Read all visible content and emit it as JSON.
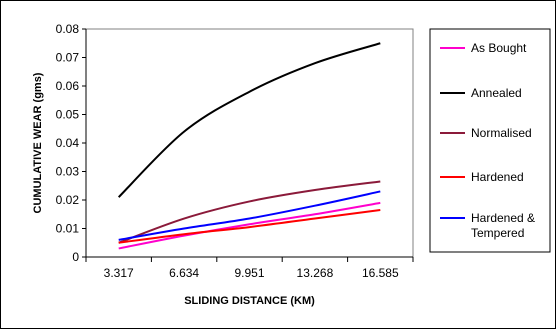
{
  "chart_data": {
    "type": "line",
    "title": "",
    "xlabel": "SLIDING DISTANCE (KM)",
    "ylabel": "CUMULATIVE WEAR (gms)",
    "x_ticks": [
      "3.317",
      "6.634",
      "9.951",
      "13.268",
      "16.585"
    ],
    "x": [
      3.317,
      6.634,
      9.951,
      13.268,
      16.585
    ],
    "ylim": [
      0,
      0.08
    ],
    "y_ticks": [
      "0",
      "0.01",
      "0.02",
      "0.03",
      "0.04",
      "0.05",
      "0.06",
      "0.07",
      "0.08"
    ],
    "grid": false,
    "legend_position": "right",
    "series": [
      {
        "name": "As Bought",
        "color": "#ff00cc",
        "values": [
          0.003,
          0.0075,
          0.0115,
          0.015,
          0.019
        ]
      },
      {
        "name": "Annealed",
        "color": "#000000",
        "values": [
          0.021,
          0.044,
          0.058,
          0.068,
          0.075
        ]
      },
      {
        "name": "Normalised",
        "color": "#8b1a3a",
        "values": [
          0.005,
          0.0135,
          0.0195,
          0.0235,
          0.0265
        ]
      },
      {
        "name": "Hardened",
        "color": "#ff0000",
        "values": [
          0.005,
          0.008,
          0.0105,
          0.0135,
          0.0165
        ]
      },
      {
        "name": "Hardened & Tempered",
        "name_lines": [
          "Hardened &",
          "Tempered"
        ],
        "color": "#0000ff",
        "values": [
          0.006,
          0.01,
          0.0135,
          0.018,
          0.023
        ]
      }
    ]
  }
}
